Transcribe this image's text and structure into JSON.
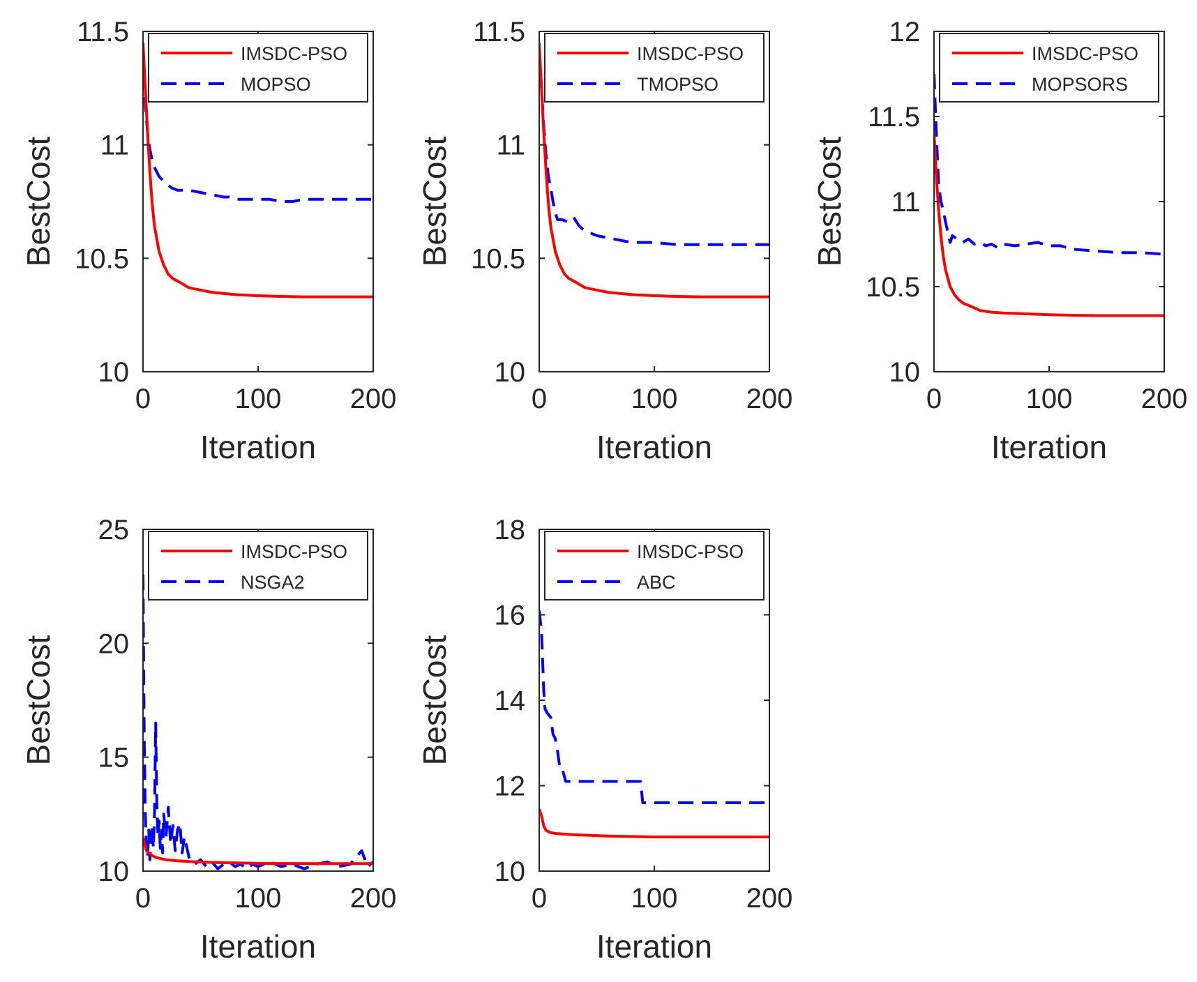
{
  "colors": {
    "imsdc": "#ff0000",
    "compare": "#0000ff",
    "axis": "#262626"
  },
  "chart_data": [
    {
      "type": "line",
      "xlabel": "Iteration",
      "ylabel": "BestCost",
      "xlim": [
        0,
        200
      ],
      "ylim": [
        10,
        11.5
      ],
      "xticks": [
        "0",
        "100",
        "200"
      ],
      "yticks": [
        "10",
        "10.5",
        "11",
        "11.5"
      ],
      "legend_position": "top-right",
      "series": [
        {
          "name": "IMSDC-PSO",
          "style": "solid",
          "x": [
            0,
            2,
            4,
            6,
            8,
            10,
            14,
            18,
            22,
            26,
            30,
            40,
            50,
            60,
            80,
            100,
            120,
            140,
            160,
            180,
            200
          ],
          "y": [
            11.45,
            11.25,
            11.05,
            10.88,
            10.74,
            10.64,
            10.53,
            10.47,
            10.43,
            10.41,
            10.4,
            10.37,
            10.36,
            10.35,
            10.34,
            10.335,
            10.332,
            10.33,
            10.33,
            10.33,
            10.33
          ]
        },
        {
          "name": "MOPSO",
          "style": "dashed",
          "x": [
            0,
            2,
            4,
            6,
            8,
            10,
            12,
            14,
            16,
            20,
            25,
            30,
            35,
            40,
            50,
            60,
            70,
            75,
            80,
            90,
            100,
            110,
            120,
            125,
            130,
            140,
            150,
            160,
            180,
            200
          ],
          "y": [
            11.42,
            11.18,
            11.05,
            10.98,
            10.93,
            10.9,
            10.88,
            10.86,
            10.85,
            10.83,
            10.81,
            10.8,
            10.8,
            10.8,
            10.79,
            10.78,
            10.77,
            10.77,
            10.76,
            10.76,
            10.76,
            10.76,
            10.75,
            10.75,
            10.75,
            10.76,
            10.76,
            10.76,
            10.76,
            10.76
          ]
        }
      ]
    },
    {
      "type": "line",
      "xlabel": "Iteration",
      "ylabel": "BestCost",
      "xlim": [
        0,
        200
      ],
      "ylim": [
        10,
        11.5
      ],
      "xticks": [
        "0",
        "100",
        "200"
      ],
      "yticks": [
        "10",
        "10.5",
        "11",
        "11.5"
      ],
      "legend_position": "top-right",
      "series": [
        {
          "name": "IMSDC-PSO",
          "style": "solid",
          "x": [
            0,
            2,
            4,
            6,
            8,
            10,
            14,
            18,
            22,
            26,
            30,
            40,
            50,
            60,
            80,
            100,
            120,
            140,
            160,
            180,
            200
          ],
          "y": [
            11.45,
            11.25,
            11.05,
            10.88,
            10.74,
            10.64,
            10.53,
            10.47,
            10.43,
            10.41,
            10.4,
            10.37,
            10.36,
            10.35,
            10.34,
            10.335,
            10.332,
            10.33,
            10.33,
            10.33,
            10.33
          ]
        },
        {
          "name": "TMOPSO",
          "style": "dashed",
          "x": [
            0,
            2,
            4,
            6,
            8,
            10,
            12,
            14,
            16,
            20,
            25,
            30,
            35,
            40,
            45,
            50,
            60,
            70,
            80,
            90,
            100,
            120,
            140,
            160,
            180,
            200
          ],
          "y": [
            11.42,
            11.25,
            11.08,
            10.95,
            10.86,
            10.81,
            10.75,
            10.7,
            10.67,
            10.67,
            10.66,
            10.68,
            10.64,
            10.62,
            10.61,
            10.6,
            10.59,
            10.58,
            10.57,
            10.57,
            10.57,
            10.56,
            10.56,
            10.56,
            10.56,
            10.56
          ]
        }
      ]
    },
    {
      "type": "line",
      "xlabel": "Iteration",
      "ylabel": "BestCost",
      "xlim": [
        0,
        200
      ],
      "ylim": [
        10,
        12
      ],
      "xticks": [
        "0",
        "100",
        "200"
      ],
      "yticks": [
        "10",
        "10.5",
        "11",
        "11.5",
        "12"
      ],
      "legend_position": "top-right",
      "series": [
        {
          "name": "IMSDC-PSO",
          "style": "solid",
          "x": [
            0,
            2,
            4,
            6,
            8,
            10,
            14,
            18,
            22,
            26,
            30,
            40,
            50,
            60,
            80,
            100,
            120,
            140,
            160,
            180,
            200
          ],
          "y": [
            11.4,
            11.15,
            10.95,
            10.8,
            10.68,
            10.6,
            10.5,
            10.45,
            10.42,
            10.4,
            10.39,
            10.36,
            10.35,
            10.345,
            10.34,
            10.335,
            10.332,
            10.33,
            10.33,
            10.33,
            10.33
          ]
        },
        {
          "name": "MOPSORS",
          "style": "dashed",
          "x": [
            0,
            2,
            4,
            6,
            8,
            10,
            12,
            14,
            16,
            20,
            25,
            30,
            35,
            40,
            45,
            50,
            55,
            60,
            70,
            80,
            90,
            100,
            110,
            120,
            140,
            160,
            180,
            200
          ],
          "y": [
            11.75,
            11.4,
            11.1,
            11.0,
            10.95,
            10.88,
            10.82,
            10.76,
            10.8,
            10.78,
            10.76,
            10.78,
            10.75,
            10.76,
            10.74,
            10.75,
            10.73,
            10.75,
            10.74,
            10.75,
            10.76,
            10.74,
            10.74,
            10.72,
            10.71,
            10.7,
            10.7,
            10.69
          ]
        }
      ]
    },
    {
      "type": "line",
      "xlabel": "Iteration",
      "ylabel": "BestCost",
      "xlim": [
        0,
        200
      ],
      "ylim": [
        10,
        25
      ],
      "xticks": [
        "0",
        "100",
        "200"
      ],
      "yticks": [
        "10",
        "15",
        "20",
        "25"
      ],
      "legend_position": "top-right",
      "series": [
        {
          "name": "IMSDC-PSO",
          "style": "solid",
          "x": [
            0,
            3,
            6,
            10,
            15,
            20,
            30,
            40,
            60,
            80,
            100,
            150,
            200
          ],
          "y": [
            11.45,
            10.9,
            10.75,
            10.62,
            10.55,
            10.5,
            10.45,
            10.42,
            10.38,
            10.36,
            10.34,
            10.33,
            10.33
          ]
        },
        {
          "name": "NSGA2",
          "style": "dashed",
          "x": [
            0,
            1,
            2,
            3,
            4,
            5,
            6,
            7,
            8,
            9,
            10,
            11,
            12,
            13,
            14,
            15,
            16,
            17,
            18,
            20,
            22,
            24,
            26,
            28,
            30,
            32,
            34,
            36,
            40,
            45,
            50,
            55,
            60,
            65,
            70,
            75,
            80,
            85,
            90,
            95,
            100,
            110,
            120,
            130,
            140,
            150,
            160,
            170,
            180,
            185,
            190,
            195,
            200
          ],
          "y": [
            23.0,
            16.0,
            12.5,
            11.0,
            10.6,
            11.8,
            10.5,
            11.3,
            12.0,
            11.0,
            12.5,
            16.5,
            13.0,
            11.5,
            12.2,
            11.0,
            11.8,
            10.8,
            12.5,
            11.5,
            12.8,
            11.2,
            12.0,
            10.9,
            11.8,
            12.1,
            10.8,
            11.5,
            10.6,
            10.3,
            10.5,
            10.2,
            10.4,
            10.1,
            10.3,
            10.4,
            10.2,
            10.3,
            10.1,
            10.3,
            10.2,
            10.4,
            10.2,
            10.3,
            10.1,
            10.3,
            10.4,
            10.2,
            10.3,
            10.6,
            10.9,
            10.2,
            10.4
          ]
        }
      ]
    },
    {
      "type": "line",
      "xlabel": "Iteration",
      "ylabel": "BestCost",
      "xlim": [
        0,
        200
      ],
      "ylim": [
        10,
        18
      ],
      "xticks": [
        "0",
        "100",
        "200"
      ],
      "yticks": [
        "10",
        "12",
        "14",
        "16",
        "18"
      ],
      "legend_position": "top-right",
      "series": [
        {
          "name": "IMSDC-PSO",
          "style": "solid",
          "x": [
            0,
            2,
            4,
            6,
            10,
            15,
            20,
            30,
            40,
            60,
            80,
            100,
            150,
            200
          ],
          "y": [
            11.45,
            11.3,
            11.05,
            10.95,
            10.9,
            10.88,
            10.87,
            10.85,
            10.84,
            10.82,
            10.81,
            10.8,
            10.8,
            10.8
          ]
        },
        {
          "name": "ABC",
          "style": "dashed",
          "x": [
            0,
            2,
            4,
            5,
            7,
            10,
            12,
            14,
            16,
            18,
            20,
            22,
            23,
            30,
            40,
            50,
            60,
            70,
            80,
            88,
            90,
            91,
            100,
            150,
            200
          ],
          "y": [
            16.1,
            15.6,
            14.2,
            13.8,
            13.7,
            13.6,
            13.2,
            13.1,
            12.8,
            12.4,
            12.4,
            12.2,
            12.1,
            12.1,
            12.1,
            12.1,
            12.1,
            12.1,
            12.1,
            12.1,
            11.6,
            11.6,
            11.6,
            11.6,
            11.6
          ]
        }
      ]
    }
  ]
}
